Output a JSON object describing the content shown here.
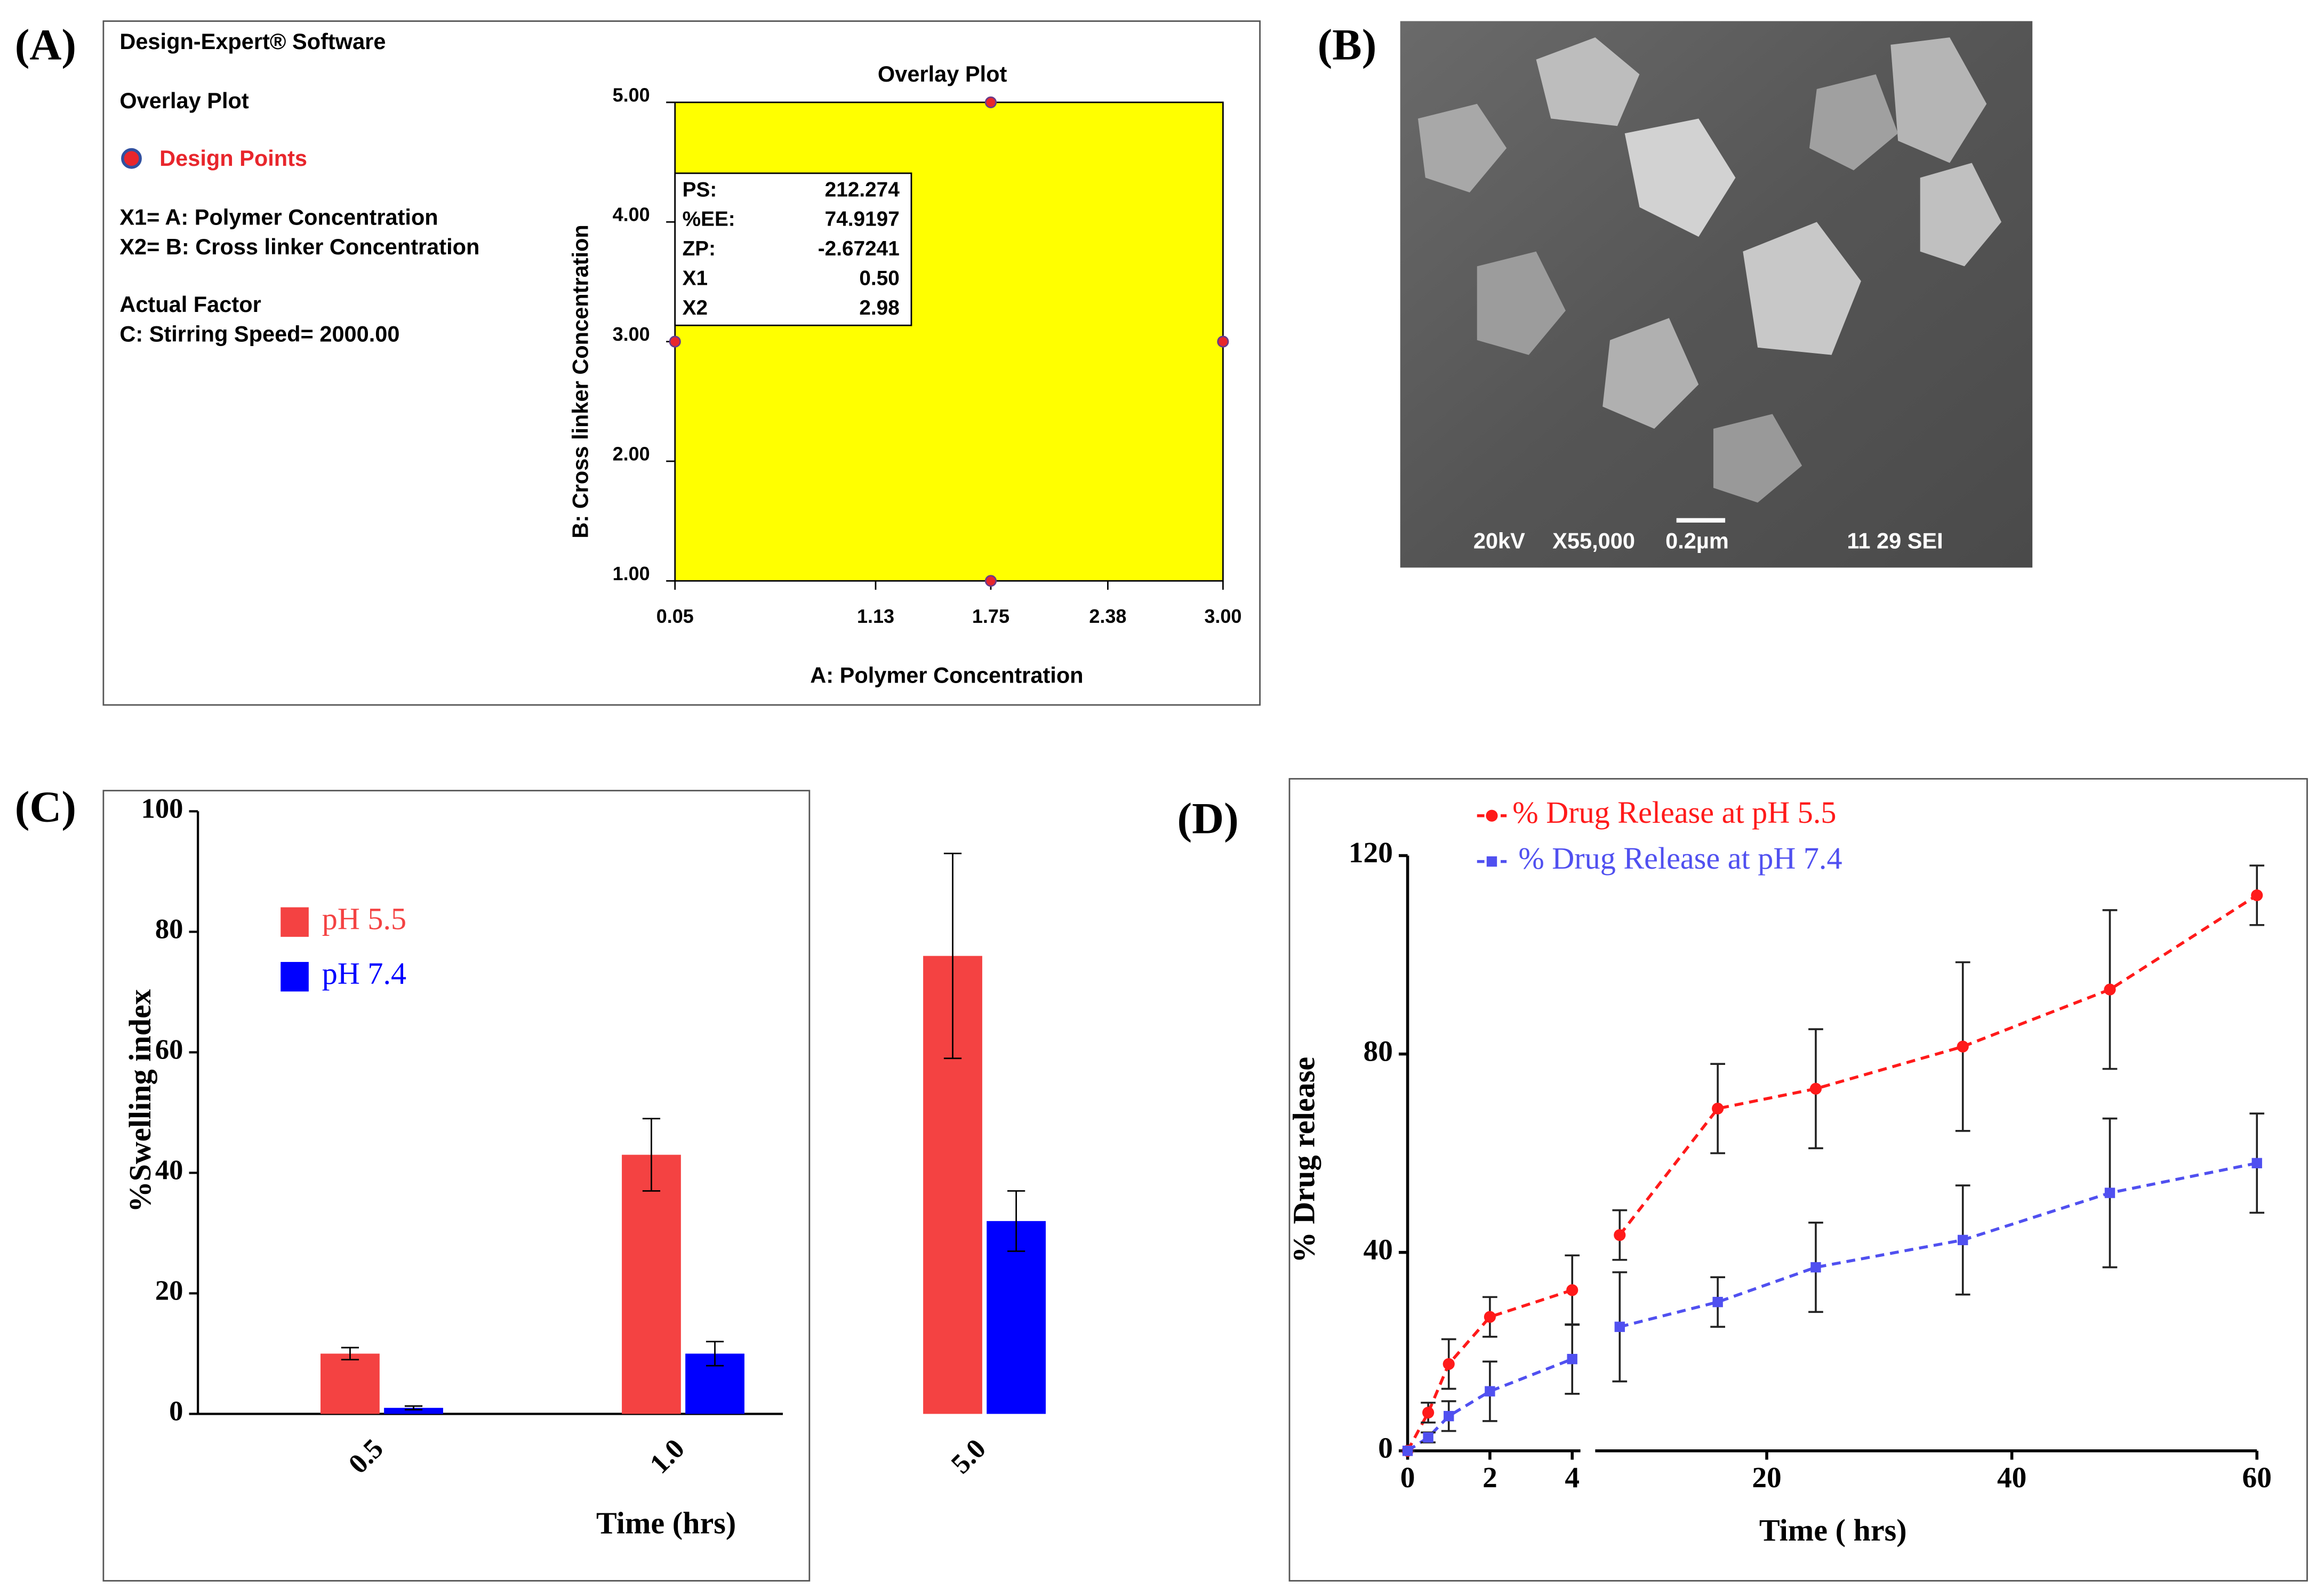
{
  "panel_labels": [
    "(A)",
    "(B)",
    "(C)",
    "(D)"
  ],
  "chart_data": [
    {
      "type": "scatter",
      "title": "Overlay Plot",
      "info": [
        "Design-Expert® Software",
        "Overlay Plot",
        "X1= A: Polymer Concentration",
        "X2= B: Cross linker Concentration",
        "Actual Factor",
        "C: Stirring Speed= 2000.00"
      ],
      "legend_label": "Design Points",
      "x": [
        0.05,
        1.75,
        1.75,
        3
      ],
      "y": [
        3,
        5,
        1,
        3
      ],
      "color": "#e8262c",
      "region_color": "#ffff00",
      "xlim": [
        0.05,
        3
      ],
      "ylim": [
        1,
        5
      ],
      "xticks": [
        0.05,
        1.13,
        1.75,
        2.38,
        {
          "value": 3,
          "label": "3.00"
        }
      ],
      "yticks": [
        {
          "value": 1,
          "label": "1.00"
        },
        {
          "value": 2,
          "label": "2.00"
        },
        {
          "value": 3,
          "label": "3.00"
        },
        {
          "value": 4,
          "label": "4.00"
        },
        {
          "value": 5,
          "label": "5.00"
        }
      ],
      "xlabel": "A: Polymer Concentration",
      "ylabel": "B: Cross linker Concentration",
      "annotation": {
        "rows": [
          [
            "PS:",
            "212.274"
          ],
          [
            "%EE:",
            "74.9197"
          ],
          [
            "ZP:",
            "-2.67241"
          ],
          [
            "X1",
            "0.50"
          ],
          [
            "X2",
            "2.98"
          ]
        ]
      }
    },
    {
      "type": "bar",
      "categories": [
        "0.5",
        "1.0",
        "5.0"
      ],
      "series": [
        {
          "name": "pH 5.5",
          "color": "#f44242",
          "values": [
            10,
            43,
            76
          ],
          "errors": [
            1,
            6,
            17
          ]
        },
        {
          "name": "pH 7.4",
          "color": "#0000ff",
          "values": [
            1,
            10,
            32
          ],
          "errors": [
            0.3,
            2,
            5
          ]
        }
      ],
      "ylim": [
        0,
        100
      ],
      "yticks": [
        0,
        20,
        40,
        60,
        80,
        100
      ],
      "xlabel": "Time (hrs)",
      "ylabel": "%Swelling index"
    },
    {
      "type": "line",
      "x": [
        0,
        0.5,
        1,
        2,
        4,
        8,
        16,
        24,
        36,
        48,
        60
      ],
      "series": [
        {
          "name": "% Drug Release at pH 5.5",
          "color": "#ff1a1a",
          "marker": "circle",
          "values": [
            0,
            7.7,
            17.5,
            27,
            32.4,
            43.5,
            69,
            73,
            81.5,
            93,
            112
          ],
          "errors": [
            0,
            2,
            5,
            4,
            7,
            5,
            9,
            12,
            17,
            16,
            6
          ]
        },
        {
          "name": "% Drug Release at pH 7.4",
          "color": "#5050f0",
          "marker": "square",
          "values": [
            0,
            2.7,
            7,
            12,
            18.5,
            25,
            30,
            37,
            42.5,
            52,
            58
          ],
          "errors": [
            0,
            1,
            3,
            6,
            7,
            11,
            5,
            9,
            11,
            15,
            10
          ]
        }
      ],
      "xlim": [
        [
          0,
          4.2
        ],
        [
          6,
          60
        ]
      ],
      "xticks": [
        [
          0,
          2,
          4
        ],
        [
          20,
          40,
          60
        ]
      ],
      "ylim": [
        0,
        120
      ],
      "yticks": [
        0,
        40,
        80,
        120
      ],
      "xlabel": "Time ( hrs)",
      "ylabel": "% Drug release"
    }
  ],
  "image": {
    "labels": [
      "20kV",
      "X55,000",
      "0.2µm",
      "11 29 SEI"
    ]
  }
}
